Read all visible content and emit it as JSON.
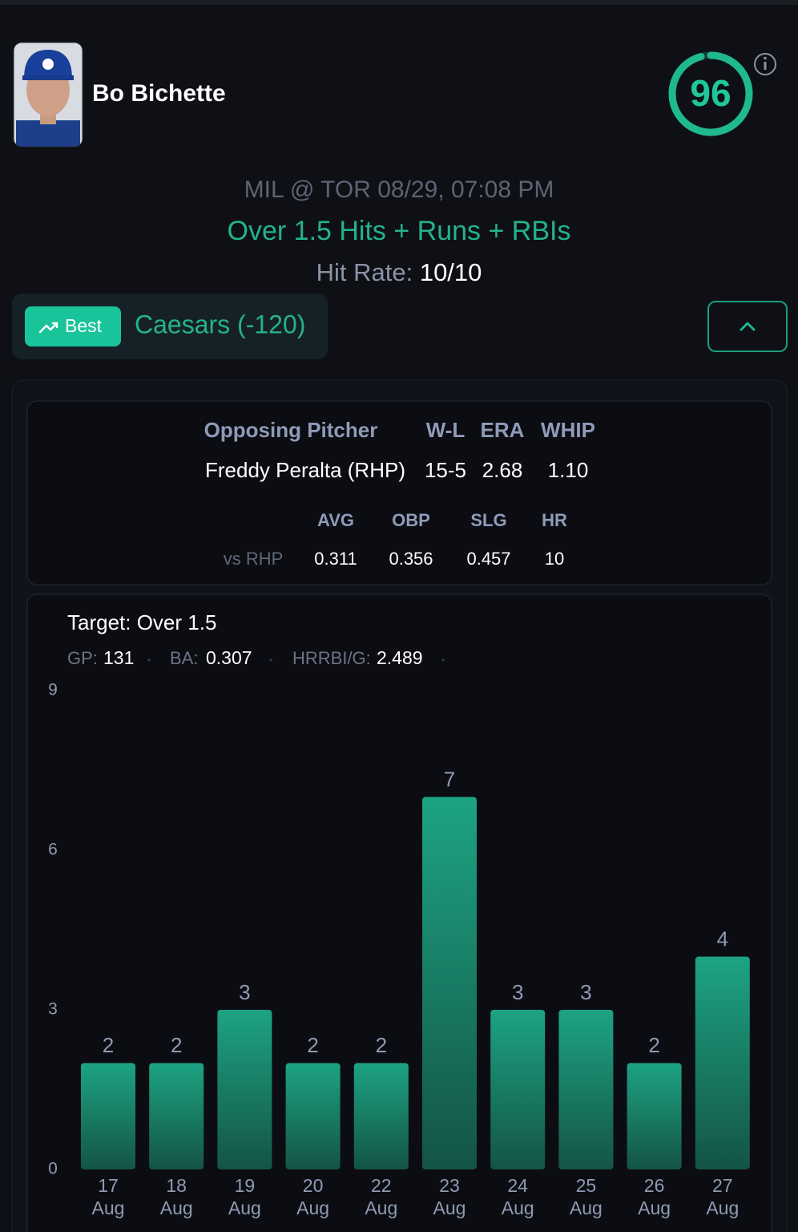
{
  "player": {
    "name": "Bo Bichette",
    "score": 96
  },
  "game": "MIL @ TOR 08/29, 07:08 PM",
  "prop": "Over 1.5 Hits + Runs + RBIs",
  "hit_rate": {
    "label": "Hit Rate:",
    "value": "10/10"
  },
  "best": {
    "badge": "Best",
    "book": "Caesars (-120)"
  },
  "pitcher": {
    "headers": [
      "Opposing Pitcher",
      "W-L",
      "ERA",
      "WHIP"
    ],
    "row": [
      "Freddy Peralta (RHP)",
      "15-5",
      "2.68",
      "1.10"
    ]
  },
  "splits": {
    "headers": [
      "AVG",
      "OBP",
      "SLG",
      "HR"
    ],
    "row_label": "vs RHP",
    "row": [
      "0.311",
      "0.356",
      "0.457",
      "10"
    ]
  },
  "summary": [
    {
      "label": "GP:",
      "value": "131"
    },
    {
      "label": "BA:",
      "value": "0.307"
    },
    {
      "label": "HRRBI/G:",
      "value": "2.489"
    }
  ],
  "chart_data": {
    "type": "bar",
    "title": "Target: Over 1.5",
    "categories": [
      "17 Aug",
      "18 Aug",
      "19 Aug",
      "20 Aug",
      "22 Aug",
      "23 Aug",
      "24 Aug",
      "25 Aug",
      "26 Aug",
      "27 Aug"
    ],
    "values": [
      2,
      2,
      3,
      2,
      2,
      7,
      3,
      3,
      2,
      4
    ],
    "color": "#1a9e80",
    "ylim": [
      0,
      9
    ],
    "yticks": [
      0,
      3,
      6,
      9
    ],
    "grid": false
  }
}
